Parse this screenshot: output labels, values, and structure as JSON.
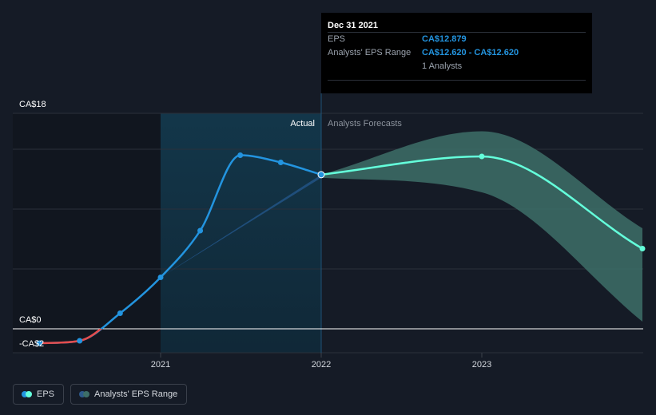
{
  "chart_data": {
    "type": "line",
    "y_axis": {
      "top_label": "CA$18",
      "zero_label": "CA$0",
      "neg_label": "-CA$2"
    },
    "x_ticks": [
      "2021",
      "2022",
      "2023"
    ],
    "regions": {
      "actual_label": "Actual",
      "forecast_label": "Analysts Forecasts"
    },
    "series": [
      {
        "name": "EPS",
        "points": [
          [
            "2020-03-31",
            -1.2
          ],
          [
            "2020-06-30",
            -1.0
          ],
          [
            "2020-09-30",
            1.3
          ],
          [
            "2020-12-31",
            4.3
          ],
          [
            "2021-03-31",
            8.2
          ],
          [
            "2021-06-30",
            14.5
          ],
          [
            "2021-09-30",
            13.9
          ],
          [
            "2021-12-31",
            12.879
          ]
        ]
      },
      {
        "name": "EPS Forecast",
        "points": [
          [
            "2021-12-31",
            12.879
          ],
          [
            "2022-12-31",
            14.4
          ],
          [
            "2023-12-31",
            6.7
          ]
        ]
      }
    ],
    "range_band": {
      "name": "Analysts' EPS Range",
      "past": {
        "x": [
          "2020-12-31",
          "2021-12-31"
        ],
        "upper": [
          4.3,
          12.879
        ],
        "lower": [
          4.3,
          12.62
        ]
      },
      "forecast": {
        "x": [
          "2021-12-31",
          "2022-12-31",
          "2023-12-31"
        ],
        "upper": [
          12.879,
          16.5,
          8.4
        ],
        "lower": [
          12.62,
          11.4,
          0.6
        ]
      }
    }
  },
  "tooltip": {
    "date": "Dec 31 2021",
    "eps_label": "EPS",
    "eps_value": "CA$12.879",
    "range_label": "Analysts' EPS Range",
    "range_value": "CA$12.620 - CA$12.620",
    "analysts": "1 Analysts"
  },
  "legend": [
    {
      "label": "EPS",
      "colors": [
        "#2394df",
        "#64ffdb"
      ]
    },
    {
      "label": "Analysts' EPS Range",
      "colors": [
        "#2d5a8c",
        "#3d6e68"
      ]
    }
  ],
  "colors": {
    "eps_past": "#2394df",
    "eps_negative": "#e44c4c",
    "eps_forecast": "#64ffdb",
    "band_past": "#21507e",
    "band_forecast": "#3d6e68",
    "highlight": "#14354a"
  }
}
